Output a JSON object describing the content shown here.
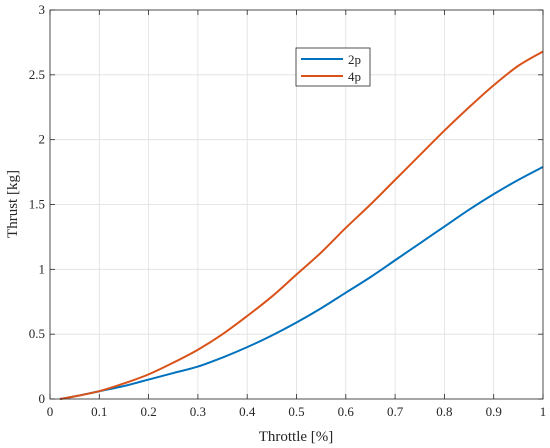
{
  "chart_data": {
    "type": "line",
    "xlabel": "Throttle [%]",
    "ylabel": "Thrust [kg]",
    "xlim": [
      0,
      1
    ],
    "ylim": [
      0,
      3
    ],
    "xticks": [
      0,
      0.1,
      0.2,
      0.3,
      0.4,
      0.5,
      0.6,
      0.7,
      0.8,
      0.9,
      1
    ],
    "xtick_labels": [
      "0",
      "0.1",
      "0.2",
      "0.3",
      "0.4",
      "0.5",
      "0.6",
      "0.7",
      "0.8",
      "0.9",
      "1"
    ],
    "yticks": [
      0,
      0.5,
      1,
      1.5,
      2,
      2.5,
      3
    ],
    "ytick_labels": [
      "0",
      "0.5",
      "1",
      "1.5",
      "2",
      "2.5",
      "3"
    ],
    "grid": true,
    "legend_position": "top-center",
    "series": [
      {
        "name": "2p",
        "color": "#0072BD",
        "x": [
          0.02,
          0.05,
          0.1,
          0.15,
          0.2,
          0.25,
          0.3,
          0.35,
          0.4,
          0.45,
          0.5,
          0.55,
          0.6,
          0.65,
          0.7,
          0.75,
          0.8,
          0.85,
          0.9,
          0.95,
          1.0
        ],
        "y": [
          0.0,
          0.02,
          0.06,
          0.1,
          0.15,
          0.2,
          0.25,
          0.32,
          0.4,
          0.49,
          0.59,
          0.7,
          0.82,
          0.94,
          1.07,
          1.2,
          1.33,
          1.46,
          1.58,
          1.69,
          1.79
        ]
      },
      {
        "name": "4p",
        "color": "#D95319",
        "x": [
          0.02,
          0.05,
          0.1,
          0.15,
          0.2,
          0.25,
          0.3,
          0.35,
          0.4,
          0.45,
          0.5,
          0.55,
          0.6,
          0.65,
          0.7,
          0.75,
          0.8,
          0.85,
          0.9,
          0.95,
          1.0
        ],
        "y": [
          0.0,
          0.02,
          0.06,
          0.12,
          0.19,
          0.28,
          0.38,
          0.5,
          0.64,
          0.79,
          0.96,
          1.13,
          1.32,
          1.5,
          1.69,
          1.88,
          2.07,
          2.25,
          2.42,
          2.57,
          2.68
        ]
      }
    ]
  }
}
